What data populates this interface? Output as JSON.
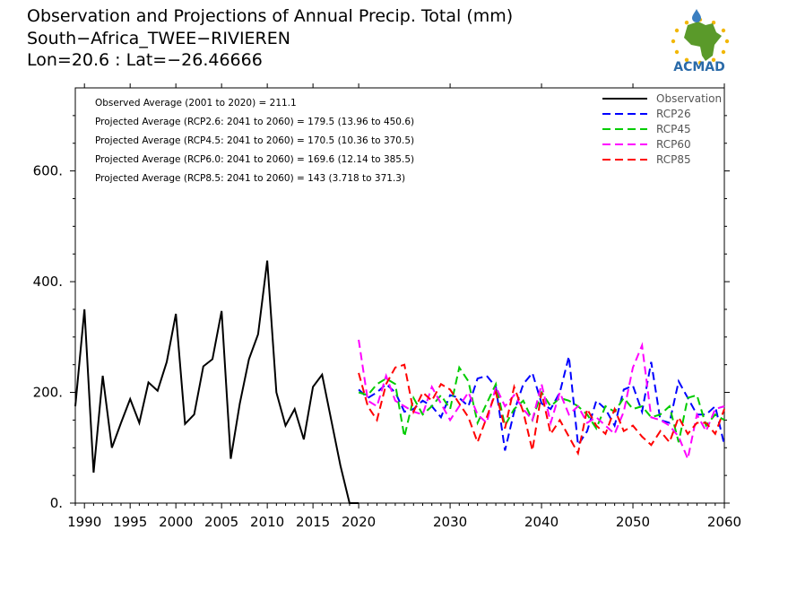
{
  "header": {
    "title": "Observation and Projections of Annual Precip. Total (mm)",
    "location": "South−Africa_TWEE−RIVIEREN",
    "coords": "Lon=20.6 : Lat=−26.46666"
  },
  "logo": {
    "text": "ACMAD",
    "colors": {
      "africa": "#5a9a2a",
      "text": "#2a6aa8",
      "drop": "#3a7ec0",
      "stars": "#f2b705"
    }
  },
  "stats": [
    "Observed Average (2001 to 2020) = 211.1",
    "Projected Average (RCP2.6: 2041 to 2060) = 179.5 (13.96 to 450.6)",
    "Projected Average (RCP4.5: 2041 to 2060) = 170.5 (10.36 to 370.5)",
    "Projected Average (RCP6.0: 2041 to 2060) = 169.6 (12.14 to 385.5)",
    "Projected Average (RCP8.5: 2041 to 2060) = 143 (3.718 to 371.3)"
  ],
  "chart_data": {
    "type": "line",
    "xlim": [
      1989,
      2060
    ],
    "ylim": [
      0,
      750
    ],
    "x_ticks": [
      1990,
      1995,
      2000,
      2005,
      2010,
      2015,
      2020,
      2030,
      2040,
      2050,
      2060
    ],
    "y_ticks": [
      0,
      200,
      400,
      600
    ],
    "y_tick_labels": [
      "0.",
      "200.",
      "400.",
      "600."
    ],
    "legend_position": "top-right",
    "series": [
      {
        "name": "Observation",
        "color": "#000000",
        "dashed": false,
        "x": [
          1989,
          1990,
          1991,
          1992,
          1993,
          1994,
          1995,
          1996,
          1997,
          1998,
          1999,
          2000,
          2001,
          2002,
          2003,
          2004,
          2005,
          2006,
          2007,
          2008,
          2009,
          2010,
          2011,
          2012,
          2013,
          2014,
          2015,
          2016,
          2017,
          2018,
          2019,
          2020
        ],
        "values": [
          175,
          350,
          55,
          230,
          100,
          145,
          188,
          145,
          218,
          203,
          255,
          342,
          143,
          160,
          247,
          260,
          347,
          80,
          180,
          260,
          305,
          438,
          200,
          140,
          170,
          115,
          210,
          232,
          150,
          68,
          0,
          0
        ]
      },
      {
        "name": "RCP26",
        "color": "#0000ff",
        "dashed": true,
        "x": [
          2020,
          2021,
          2022,
          2023,
          2024,
          2025,
          2026,
          2027,
          2028,
          2029,
          2030,
          2031,
          2032,
          2033,
          2034,
          2035,
          2036,
          2037,
          2038,
          2039,
          2040,
          2041,
          2042,
          2043,
          2044,
          2045,
          2046,
          2047,
          2048,
          2049,
          2050,
          2051,
          2052,
          2053,
          2054,
          2055,
          2056,
          2057,
          2058,
          2059,
          2060
        ],
        "values": [
          205,
          190,
          200,
          215,
          200,
          165,
          170,
          185,
          175,
          155,
          195,
          190,
          175,
          225,
          230,
          210,
          95,
          165,
          215,
          235,
          180,
          170,
          200,
          265,
          105,
          130,
          185,
          170,
          140,
          205,
          212,
          165,
          255,
          150,
          145,
          220,
          190,
          160,
          160,
          175,
          105
        ]
      },
      {
        "name": "RCP45",
        "color": "#00cc00",
        "dashed": true,
        "x": [
          2020,
          2021,
          2022,
          2023,
          2024,
          2025,
          2026,
          2027,
          2028,
          2029,
          2030,
          2031,
          2032,
          2033,
          2034,
          2035,
          2036,
          2037,
          2038,
          2039,
          2040,
          2041,
          2042,
          2043,
          2044,
          2045,
          2046,
          2047,
          2048,
          2049,
          2050,
          2051,
          2052,
          2053,
          2054,
          2055,
          2056,
          2057,
          2058,
          2059,
          2060
        ],
        "values": [
          200,
          195,
          215,
          225,
          215,
          120,
          190,
          160,
          175,
          195,
          170,
          245,
          220,
          145,
          180,
          215,
          140,
          170,
          185,
          150,
          200,
          175,
          190,
          185,
          175,
          160,
          135,
          175,
          165,
          190,
          170,
          175,
          155,
          160,
          175,
          110,
          190,
          195,
          140,
          160,
          150
        ]
      },
      {
        "name": "RCP60",
        "color": "#ff00ff",
        "dashed": true,
        "x": [
          2020,
          2021,
          2022,
          2023,
          2024,
          2025,
          2026,
          2027,
          2028,
          2029,
          2030,
          2031,
          2032,
          2033,
          2034,
          2035,
          2036,
          2037,
          2038,
          2039,
          2040,
          2041,
          2042,
          2043,
          2044,
          2045,
          2046,
          2047,
          2048,
          2049,
          2050,
          2051,
          2052,
          2053,
          2054,
          2055,
          2056,
          2057,
          2058,
          2059,
          2060
        ],
        "values": [
          295,
          185,
          175,
          230,
          185,
          175,
          165,
          160,
          210,
          180,
          150,
          175,
          200,
          160,
          145,
          210,
          175,
          195,
          170,
          150,
          215,
          145,
          200,
          160,
          175,
          145,
          155,
          140,
          125,
          165,
          245,
          285,
          155,
          150,
          140,
          120,
          80,
          160,
          130,
          170,
          175
        ]
      },
      {
        "name": "RCP85",
        "color": "#ff0000",
        "dashed": true,
        "x": [
          2020,
          2021,
          2022,
          2023,
          2024,
          2025,
          2026,
          2027,
          2028,
          2029,
          2030,
          2031,
          2032,
          2033,
          2034,
          2035,
          2036,
          2037,
          2038,
          2039,
          2040,
          2041,
          2042,
          2043,
          2044,
          2045,
          2046,
          2047,
          2048,
          2049,
          2050,
          2051,
          2052,
          2053,
          2054,
          2055,
          2056,
          2057,
          2058,
          2059,
          2060
        ],
        "values": [
          235,
          175,
          150,
          215,
          245,
          250,
          165,
          200,
          185,
          215,
          205,
          180,
          155,
          110,
          155,
          200,
          135,
          210,
          165,
          95,
          200,
          125,
          150,
          120,
          90,
          170,
          140,
          125,
          170,
          130,
          140,
          120,
          105,
          130,
          110,
          155,
          125,
          145,
          145,
          125,
          170
        ]
      }
    ]
  }
}
